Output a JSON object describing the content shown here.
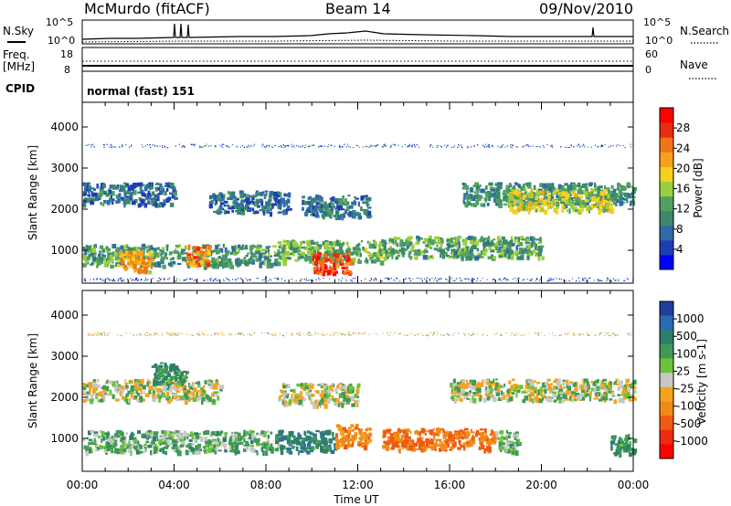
{
  "header": {
    "station": "McMurdo (fitACF)",
    "beam": "Beam 14",
    "date": "09/Nov/2010"
  },
  "noise_panel": {
    "left_label": "N.Sky",
    "right_label": "N.Search",
    "left_ticks": [
      "10^5",
      "10^0"
    ],
    "right_ticks": [
      "10^5",
      "10^0"
    ]
  },
  "freq_panel": {
    "left_label_1": "Freq.",
    "left_label_2": "[MHz]",
    "right_label": "Nave",
    "left_ticks": [
      "18",
      "8"
    ],
    "right_ticks": [
      "60",
      "0"
    ]
  },
  "cpid": {
    "label": "CPID",
    "value": "normal (fast) 151"
  },
  "colors": {
    "power_scale": [
      "#0000ff",
      "#1e3cb4",
      "#2f6aa8",
      "#3a8a6a",
      "#52a060",
      "#9ccf3c",
      "#f5d11c",
      "#f7a11a",
      "#f27418",
      "#e82c12",
      "#ff0000"
    ],
    "velocity_scale": [
      "#1f3e9e",
      "#2b6ab0",
      "#2f7e6a",
      "#3f9a55",
      "#6cc23a",
      "#c7c7c7",
      "#f3a41c",
      "#f28a16",
      "#f05a12",
      "#ee2a10",
      "#ff0000"
    ]
  },
  "chart_data": [
    {
      "type": "heatmap",
      "panel": "power",
      "ylabel": "Slant Range [km]",
      "y_ticks": [
        "1000",
        "2000",
        "3000",
        "4000"
      ],
      "ylim": [
        200,
        4600
      ],
      "xlim": [
        "00:00",
        "24:00"
      ],
      "colorbar_label": "Power [dB]",
      "colorbar_ticks": [
        "4",
        "8",
        "12",
        "16",
        "20",
        "24",
        "28"
      ],
      "colorbar_range": [
        0,
        32
      ],
      "scatter_bands": [
        {
          "from": "00:00",
          "to": "24:00",
          "range_km": 300,
          "value": 4
        },
        {
          "from": "00:00",
          "to": "08:30",
          "range_km": 900,
          "value": 11
        },
        {
          "from": "01:30",
          "to": "03:00",
          "range_km": 760,
          "value": 22
        },
        {
          "from": "04:30",
          "to": "05:30",
          "range_km": 900,
          "value": 24
        },
        {
          "from": "08:30",
          "to": "13:00",
          "range_km": 1000,
          "value": 13
        },
        {
          "from": "10:00",
          "to": "11:40",
          "range_km": 700,
          "value": 28
        },
        {
          "from": "13:00",
          "to": "20:00",
          "range_km": 1100,
          "value": 12
        },
        {
          "from": "00:00",
          "to": "04:00",
          "range_km": 2400,
          "value": 7
        },
        {
          "from": "05:30",
          "to": "09:00",
          "range_km": 2200,
          "value": 7
        },
        {
          "from": "09:30",
          "to": "12:30",
          "range_km": 2100,
          "value": 8
        },
        {
          "from": "16:30",
          "to": "24:00",
          "range_km": 2400,
          "value": 10
        },
        {
          "from": "18:30",
          "to": "23:00",
          "range_km": 2250,
          "value": 17
        },
        {
          "from": "00:00",
          "to": "24:00",
          "range_km": 3550,
          "value": 5
        }
      ]
    },
    {
      "type": "heatmap",
      "panel": "velocity",
      "ylabel": "Slant Range [km]",
      "xlabel": "Time UT",
      "x_ticks": [
        "00:00",
        "04:00",
        "08:00",
        "12:00",
        "16:00",
        "20:00",
        "00:00"
      ],
      "y_ticks": [
        "1000",
        "2000",
        "3000",
        "4000"
      ],
      "ylim": [
        200,
        4600
      ],
      "xlim": [
        "00:00",
        "24:00"
      ],
      "colorbar_label": "Velocity [m s-1]",
      "colorbar_ticks": [
        "1000",
        "500",
        "100",
        "25",
        "-25",
        "-100",
        "-500",
        "-1000"
      ],
      "scatter_bands": [
        {
          "from": "00:00",
          "to": "08:30",
          "range_km": 950,
          "value": 100
        },
        {
          "from": "08:30",
          "to": "11:00",
          "range_km": 950,
          "value": 300
        },
        {
          "from": "11:00",
          "to": "12:30",
          "range_km": 1100,
          "value": -300
        },
        {
          "from": "13:00",
          "to": "18:00",
          "range_km": 1000,
          "value": -400
        },
        {
          "from": "18:00",
          "to": "19:00",
          "range_km": 950,
          "value": 100
        },
        {
          "from": "00:00",
          "to": "06:00",
          "range_km": 2200,
          "value": 0
        },
        {
          "from": "08:30",
          "to": "12:00",
          "range_km": 2100,
          "value": 0
        },
        {
          "from": "16:00",
          "to": "24:00",
          "range_km": 2200,
          "value": 0
        },
        {
          "from": "03:00",
          "to": "04:30",
          "range_km": 2600,
          "value": 200
        },
        {
          "from": "23:00",
          "to": "24:00",
          "range_km": 850,
          "value": 200
        },
        {
          "from": "00:00",
          "to": "24:00",
          "range_km": 3550,
          "value": -50
        }
      ]
    }
  ]
}
